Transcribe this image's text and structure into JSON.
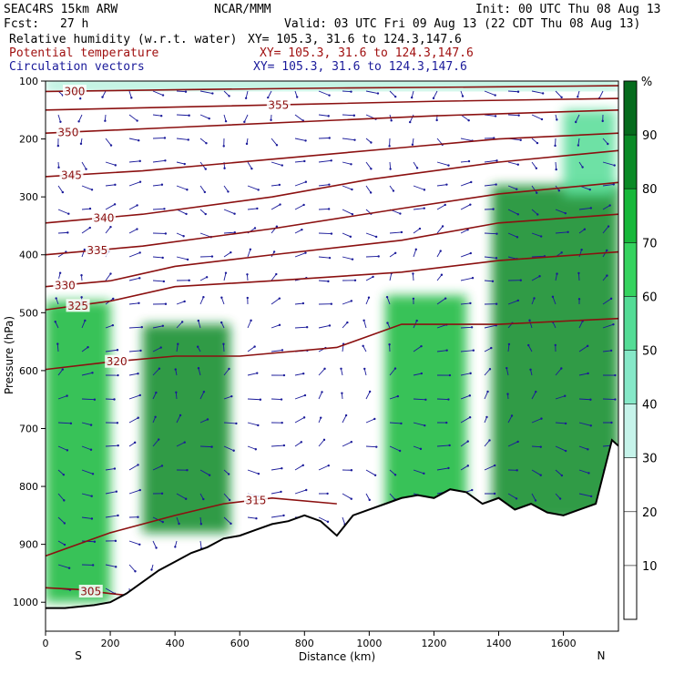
{
  "header": {
    "model": "SEAC4RS 15km ARW",
    "org": "NCAR/MMM",
    "init": "Init: 00 UTC Thu 08 Aug 13",
    "fcst_label": "Fcst:",
    "fcst_value": "27 h",
    "valid": "Valid: 03 UTC Fri 09 Aug 13 (22 CDT Thu 08 Aug 13)"
  },
  "fields": [
    {
      "name": "Relative humidity (w.r.t. water)",
      "xy": "XY= 105.3, 31.6 to 124.3,147.6",
      "color": "#000000"
    },
    {
      "name": "Potential temperature",
      "xy": "XY= 105.3, 31.6 to 124.3,147.6",
      "color": "#a01010"
    },
    {
      "name": "Circulation vectors",
      "xy": "XY= 105.3, 31.6 to 124.3,147.6",
      "color": "#1a1a9a"
    }
  ],
  "chart_data": {
    "type": "heatmap",
    "xlabel": "Distance (km)",
    "ylabel": "Pressure (hPa)",
    "xlim": [
      0,
      1770
    ],
    "ylim": [
      1050,
      100
    ],
    "x_ticks": [
      0,
      200,
      400,
      600,
      800,
      1000,
      1200,
      1400,
      1600
    ],
    "y_ticks": [
      100,
      200,
      300,
      400,
      500,
      600,
      700,
      800,
      900,
      1000
    ],
    "end_labels": {
      "left": "S",
      "right": "N"
    },
    "colorbar": {
      "unit": "%",
      "levels": [
        10,
        20,
        30,
        40,
        50,
        60,
        70,
        80,
        90
      ],
      "colors": [
        "#ffffff",
        "#ffffff",
        "#ffffff",
        "#c6f3ea",
        "#86e8c8",
        "#54dc96",
        "#35d35f",
        "#17b83a",
        "#0a8a26",
        "#066b1d"
      ]
    },
    "humid_regions": [
      {
        "x": [
          0,
          200
        ],
        "p": [
          480,
          1000
        ],
        "rh": 75
      },
      {
        "x": [
          300,
          570
        ],
        "p": [
          520,
          880
        ],
        "rh": 85
      },
      {
        "x": [
          1050,
          1300
        ],
        "p": [
          470,
          860
        ],
        "rh": 75
      },
      {
        "x": [
          1380,
          1770
        ],
        "p": [
          280,
          860
        ],
        "rh": 80
      },
      {
        "x": [
          1600,
          1760
        ],
        "p": [
          150,
          300
        ],
        "rh": 55
      },
      {
        "x": [
          0,
          1770
        ],
        "p": [
          100,
          115
        ],
        "rh": 45
      }
    ],
    "theta_contours": [
      {
        "label": "300",
        "label_x": 90,
        "points": [
          [
            0,
            118
          ],
          [
            400,
            115
          ],
          [
            900,
            112
          ],
          [
            1400,
            110
          ],
          [
            1770,
            108
          ]
        ]
      },
      {
        "label": "305",
        "label_x": 140,
        "points": [
          [
            0,
            975
          ],
          [
            100,
            978
          ],
          [
            200,
            985
          ],
          [
            290,
            990
          ]
        ]
      },
      {
        "label": "315",
        "label_x": 650,
        "points": [
          [
            0,
            920
          ],
          [
            200,
            880
          ],
          [
            400,
            850
          ],
          [
            550,
            830
          ],
          [
            700,
            820
          ],
          [
            900,
            830
          ]
        ]
      },
      {
        "label": "320",
        "label_x": 220,
        "points": [
          [
            0,
            598
          ],
          [
            200,
            585
          ],
          [
            400,
            575
          ],
          [
            600,
            575
          ],
          [
            900,
            560
          ],
          [
            1100,
            520
          ],
          [
            1400,
            520
          ],
          [
            1770,
            510
          ]
        ]
      },
      {
        "label": "325",
        "label_x": 100,
        "points": [
          [
            0,
            495
          ],
          [
            200,
            480
          ],
          [
            400,
            455
          ],
          [
            700,
            445
          ],
          [
            1100,
            430
          ],
          [
            1400,
            410
          ],
          [
            1770,
            395
          ]
        ]
      },
      {
        "label": "330",
        "label_x": 60,
        "points": [
          [
            0,
            455
          ],
          [
            200,
            445
          ],
          [
            400,
            420
          ],
          [
            700,
            400
          ],
          [
            1100,
            375
          ],
          [
            1400,
            345
          ],
          [
            1770,
            330
          ]
        ]
      },
      {
        "label": "335",
        "label_x": 160,
        "points": [
          [
            0,
            400
          ],
          [
            300,
            385
          ],
          [
            700,
            355
          ],
          [
            1100,
            320
          ],
          [
            1400,
            295
          ],
          [
            1770,
            275
          ]
        ]
      },
      {
        "label": "340",
        "label_x": 180,
        "points": [
          [
            0,
            345
          ],
          [
            300,
            330
          ],
          [
            700,
            300
          ],
          [
            1000,
            270
          ],
          [
            1400,
            240
          ],
          [
            1770,
            220
          ]
        ]
      },
      {
        "label": "345",
        "label_x": 80,
        "points": [
          [
            0,
            265
          ],
          [
            300,
            255
          ],
          [
            700,
            235
          ],
          [
            1100,
            215
          ],
          [
            1400,
            200
          ],
          [
            1770,
            190
          ]
        ]
      },
      {
        "label": "350",
        "label_x": 70,
        "points": [
          [
            0,
            190
          ],
          [
            400,
            180
          ],
          [
            800,
            170
          ],
          [
            1200,
            160
          ],
          [
            1770,
            150
          ]
        ]
      },
      {
        "label": "355",
        "label_x": 720,
        "points": [
          [
            0,
            150
          ],
          [
            400,
            145
          ],
          [
            800,
            140
          ],
          [
            1200,
            135
          ],
          [
            1770,
            130
          ]
        ]
      }
    ],
    "terrain_surface": [
      [
        0,
        1010
      ],
      [
        60,
        1010
      ],
      [
        150,
        1005
      ],
      [
        200,
        1000
      ],
      [
        250,
        985
      ],
      [
        300,
        965
      ],
      [
        350,
        945
      ],
      [
        400,
        930
      ],
      [
        450,
        915
      ],
      [
        500,
        905
      ],
      [
        550,
        890
      ],
      [
        600,
        885
      ],
      [
        650,
        875
      ],
      [
        700,
        865
      ],
      [
        750,
        860
      ],
      [
        800,
        850
      ],
      [
        850,
        860
      ],
      [
        900,
        885
      ],
      [
        950,
        850
      ],
      [
        1000,
        840
      ],
      [
        1050,
        830
      ],
      [
        1100,
        820
      ],
      [
        1150,
        815
      ],
      [
        1200,
        820
      ],
      [
        1250,
        805
      ],
      [
        1300,
        810
      ],
      [
        1350,
        830
      ],
      [
        1400,
        820
      ],
      [
        1450,
        840
      ],
      [
        1500,
        830
      ],
      [
        1550,
        845
      ],
      [
        1600,
        850
      ],
      [
        1650,
        840
      ],
      [
        1700,
        830
      ],
      [
        1750,
        720
      ],
      [
        1770,
        730
      ]
    ]
  }
}
